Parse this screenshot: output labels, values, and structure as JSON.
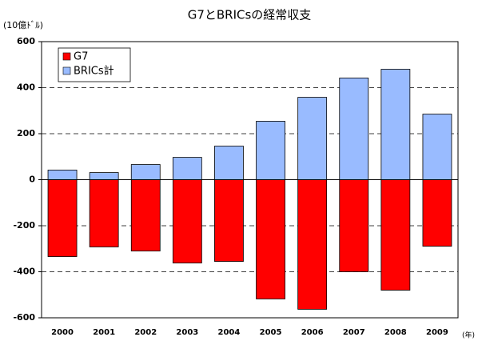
{
  "chart_data": {
    "type": "bar",
    "title": "G7とBRICsの経常収支",
    "y_label": "(10億ﾄﾞﾙ)",
    "x_label": "(年)",
    "categories": [
      "2000",
      "2001",
      "2002",
      "2003",
      "2004",
      "2005",
      "2006",
      "2007",
      "2008",
      "2009"
    ],
    "series": [
      {
        "name": "G7",
        "color": "#ff0000",
        "values": [
          -334,
          -292,
          -310,
          -362,
          -355,
          -518,
          -563,
          -400,
          -480,
          -289
        ]
      },
      {
        "name": "BRICs計",
        "color": "#99bbff",
        "values": [
          42,
          31,
          66,
          97,
          146,
          254,
          358,
          442,
          480,
          285
        ]
      }
    ],
    "ylim": [
      -600,
      600
    ],
    "yticks": [
      -600,
      -400,
      -200,
      0,
      200,
      400,
      600
    ],
    "grid": true,
    "legend": "upper left"
  }
}
